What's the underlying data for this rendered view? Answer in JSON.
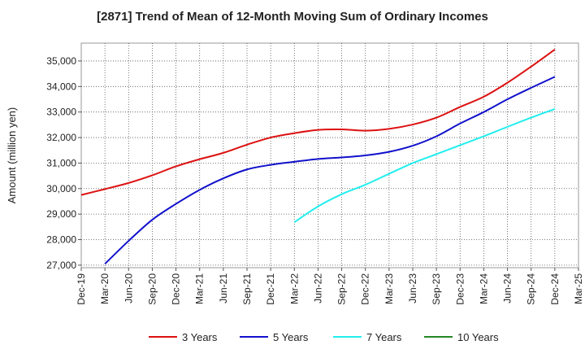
{
  "chart_data": {
    "type": "line",
    "title": "[2871]  Trend of Mean of 12-Month Moving Sum of Ordinary Incomes",
    "xlabel": "",
    "ylabel": "Amount (million yen)",
    "ylim": [
      26900,
      35700
    ],
    "yticks": [
      27000,
      28000,
      29000,
      30000,
      31000,
      32000,
      33000,
      34000,
      35000
    ],
    "ytick_labels": [
      "27,000",
      "28,000",
      "29,000",
      "30,000",
      "31,000",
      "32,000",
      "33,000",
      "34,000",
      "35,000"
    ],
    "x_tick_labels": [
      "Dec-19",
      "Mar-20",
      "Jun-20",
      "Sep-20",
      "Dec-20",
      "Mar-21",
      "Jun-21",
      "Sep-21",
      "Dec-21",
      "Mar-22",
      "Jun-22",
      "Sep-22",
      "Dec-22",
      "Mar-23",
      "Jun-23",
      "Sep-23",
      "Dec-23",
      "Mar-24",
      "Jun-24",
      "Sep-24",
      "Dec-24",
      "Mar-25"
    ],
    "grid": true,
    "legend_position": "bottom",
    "series": [
      {
        "name": "3 Years",
        "color": "#dd1111",
        "start_index": 0,
        "values": [
          29750,
          29980,
          30220,
          30520,
          30870,
          31150,
          31400,
          31720,
          32000,
          32170,
          32300,
          32320,
          32270,
          32340,
          32510,
          32780,
          33200,
          33600,
          34150,
          34780,
          35450
        ]
      },
      {
        "name": "5 Years",
        "color": "#1111cc",
        "start_index": 1,
        "values": [
          27050,
          27950,
          28780,
          29400,
          29950,
          30400,
          30750,
          30930,
          31050,
          31160,
          31220,
          31300,
          31440,
          31680,
          32050,
          32550,
          33000,
          33500,
          33950,
          34380
        ]
      },
      {
        "name": "7 Years",
        "color": "#22eeee",
        "start_index": 9,
        "values": [
          28680,
          29300,
          29780,
          30150,
          30580,
          31000,
          31350,
          31700,
          32050,
          32420,
          32780,
          33120
        ]
      },
      {
        "name": "10 Years",
        "color": "#228822",
        "start_index": 0,
        "values": []
      }
    ]
  }
}
